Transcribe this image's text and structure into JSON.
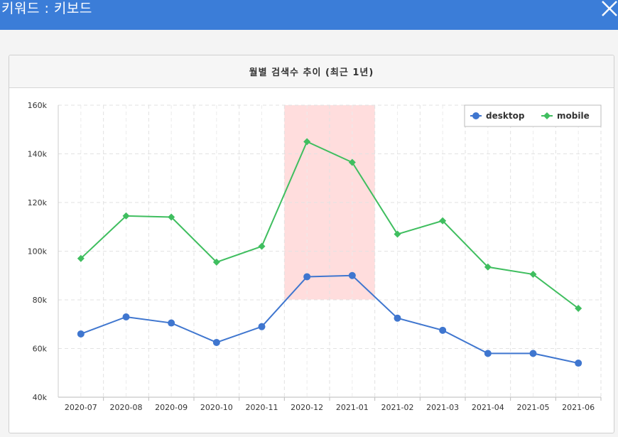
{
  "window": {
    "title": "키워드 : 키보드",
    "close_icon": "close-icon"
  },
  "panel": {
    "title": "월별 검색수 추이 (최근 1년)"
  },
  "chart_data": {
    "type": "line",
    "title": "월별 검색수 추이 (최근 1년)",
    "categories": [
      "2020-07",
      "2020-08",
      "2020-09",
      "2020-10",
      "2020-11",
      "2020-12",
      "2021-01",
      "2021-02",
      "2021-03",
      "2021-04",
      "2021-05",
      "2021-06"
    ],
    "y_tick_labels": [
      "40k",
      "60k",
      "80k",
      "100k",
      "120k",
      "140k",
      "160k"
    ],
    "y_ticks": [
      40000,
      60000,
      80000,
      100000,
      120000,
      140000,
      160000
    ],
    "ylim": [
      40000,
      160000
    ],
    "grid": true,
    "legend_position": "top-right",
    "highlight_categories": [
      "2020-12",
      "2021-01"
    ],
    "highlight_color": "#ffdddd",
    "series": [
      {
        "name": "desktop",
        "color": "#3f76cf",
        "marker": "circle",
        "values": [
          66000,
          73000,
          70500,
          62500,
          69000,
          89500,
          90000,
          72500,
          67500,
          58000,
          58000,
          54000
        ]
      },
      {
        "name": "mobile",
        "color": "#3fbe5f",
        "marker": "diamond",
        "values": [
          97000,
          114500,
          114000,
          95500,
          102000,
          145000,
          136500,
          107000,
          112500,
          93500,
          90500,
          76500
        ]
      }
    ]
  }
}
